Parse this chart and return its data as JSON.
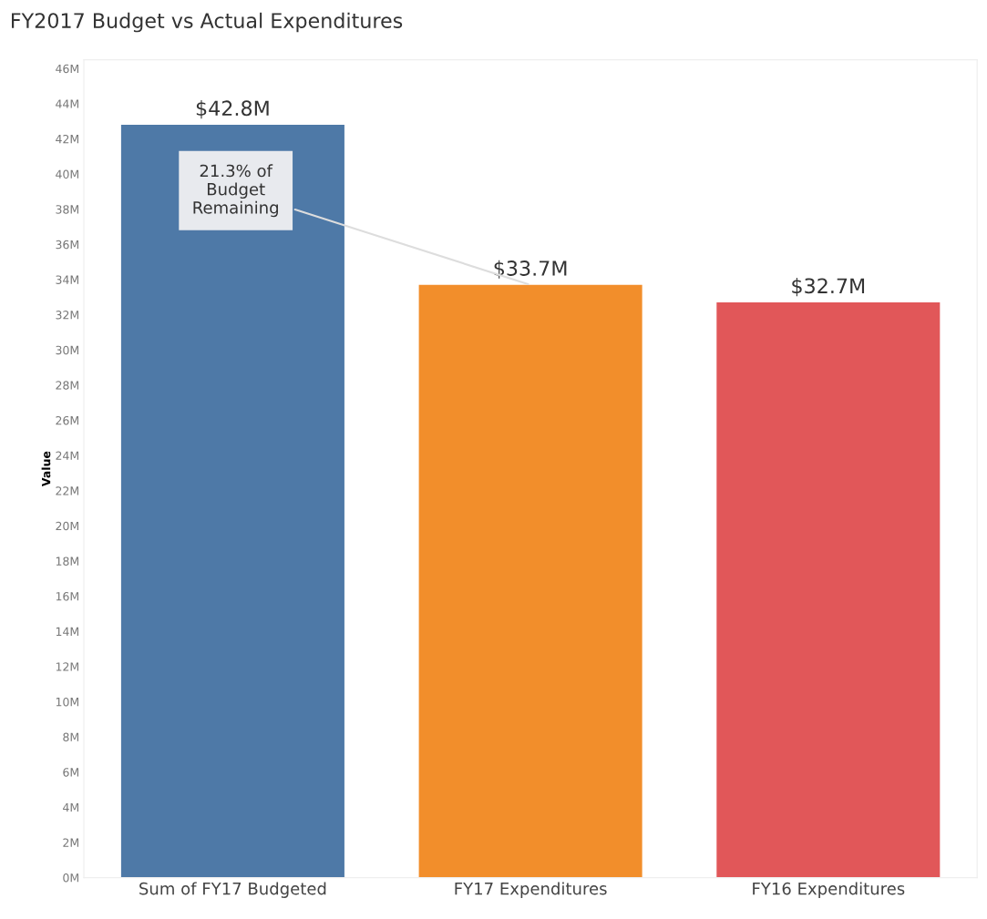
{
  "chart_data": {
    "type": "bar",
    "title": "FY2017 Budget vs Actual Expenditures",
    "ylabel": "Value",
    "categories": [
      "Sum of FY17 Budgeted",
      "FY17 Expenditures",
      "FY16 Expenditures"
    ],
    "values": [
      42.8,
      33.7,
      32.7
    ],
    "colors": [
      "#4e79a7",
      "#f28e2b",
      "#e15759"
    ],
    "value_labels": [
      "$42.8M",
      "$33.7M",
      "$32.7M"
    ],
    "annotations": [
      {
        "text": "21.3% of\nBudget\nRemaining",
        "x": "FY17 Expenditures",
        "y": 33.7
      }
    ],
    "ylim": [
      0,
      46.5
    ],
    "yticks": [
      {
        "value": 0,
        "label": "0M"
      },
      {
        "value": 2,
        "label": "2M"
      },
      {
        "value": 4,
        "label": "4M"
      },
      {
        "value": 6,
        "label": "6M"
      },
      {
        "value": 8,
        "label": "8M"
      },
      {
        "value": 10,
        "label": "10M"
      },
      {
        "value": 12,
        "label": "12M"
      },
      {
        "value": 14,
        "label": "14M"
      },
      {
        "value": 16,
        "label": "16M"
      },
      {
        "value": 18,
        "label": "18M"
      },
      {
        "value": 20,
        "label": "20M"
      },
      {
        "value": 22,
        "label": "22M"
      },
      {
        "value": 24,
        "label": "24M"
      },
      {
        "value": 26,
        "label": "26M"
      },
      {
        "value": 28,
        "label": "28M"
      },
      {
        "value": 30,
        "label": "30M"
      },
      {
        "value": 32,
        "label": "32M"
      },
      {
        "value": 34,
        "label": "34M"
      },
      {
        "value": 36,
        "label": "36M"
      },
      {
        "value": 38,
        "label": "38M"
      },
      {
        "value": 40,
        "label": "40M"
      },
      {
        "value": 42,
        "label": "42M"
      },
      {
        "value": 44,
        "label": "44M"
      },
      {
        "value": 46,
        "label": "46M"
      }
    ],
    "grid": false,
    "legend": false
  }
}
